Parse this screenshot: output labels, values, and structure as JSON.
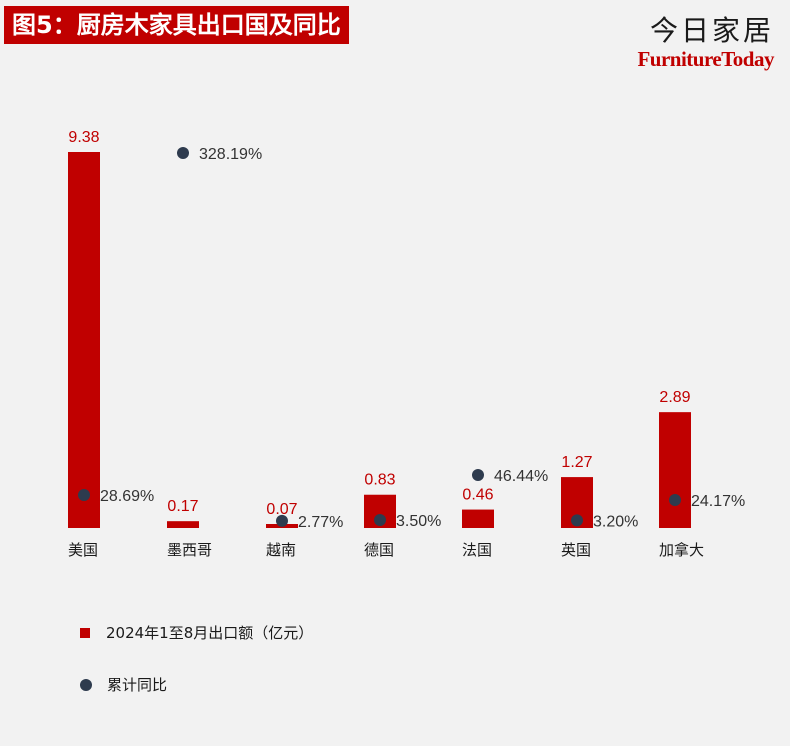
{
  "header": {
    "title": "图5：厨房木家具出口国及同比",
    "brand_cn": "今日家居",
    "brand_en": "FurnitureToday"
  },
  "colors": {
    "bar": "#c00000",
    "dot": "#2e3b4e",
    "background": "#f2f2f2"
  },
  "chart_data": {
    "type": "bar",
    "title": "图5：厨房木家具出口国及同比",
    "categories": [
      "美国",
      "墨西哥",
      "越南",
      "德国",
      "法国",
      "英国",
      "加拿大"
    ],
    "series": [
      {
        "name": "2024年1至8月出口额（亿元）",
        "type": "bar",
        "values": [
          9.38,
          0.17,
          0.07,
          0.83,
          0.46,
          1.27,
          2.89
        ],
        "labels": [
          "9.38",
          "0.17",
          "0.07",
          "0.83",
          "0.46",
          "1.27",
          "2.89"
        ]
      },
      {
        "name": "累计同比",
        "type": "scatter",
        "values": [
          28.69,
          328.19,
          2.77,
          3.5,
          46.44,
          3.2,
          24.17
        ],
        "labels": [
          "28.69%",
          "328.19%",
          "2.77%",
          "3.50%",
          "46.44%",
          "3.20%",
          "24.17%"
        ]
      }
    ],
    "legend": {
      "position": "bottom",
      "items": [
        "2024年1至8月出口额（亿元）",
        "累计同比"
      ]
    },
    "grid": false
  }
}
